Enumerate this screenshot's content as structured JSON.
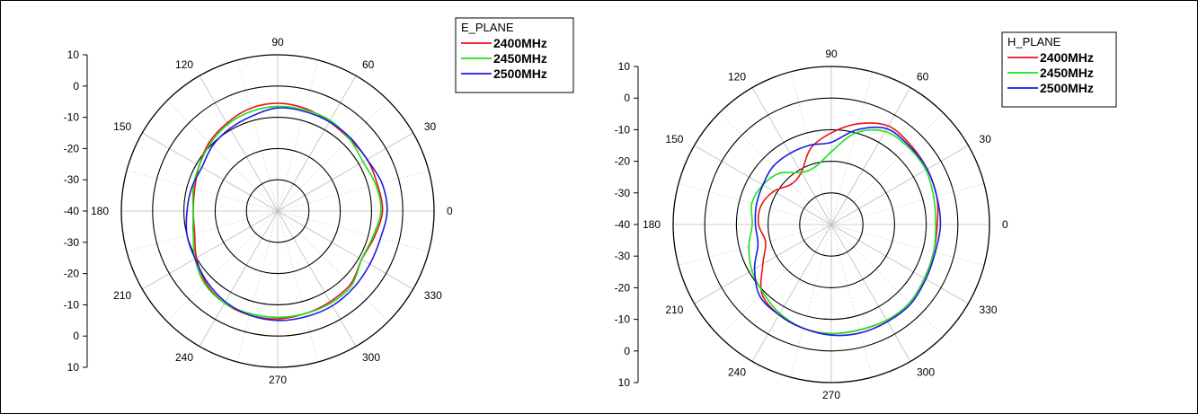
{
  "chart_data": [
    {
      "type": "polar-line",
      "legend_title": "E_PLANE",
      "legend_position": "top-right",
      "angle_labels": [
        "0",
        "30",
        "60",
        "90",
        "120",
        "150",
        "180",
        "210",
        "240",
        "270",
        "300",
        "330"
      ],
      "radial_axis_labels": [
        "10",
        "0",
        "-10",
        "-20",
        "-30",
        "-40",
        "-30",
        "-20",
        "-10",
        "0",
        "10"
      ],
      "radial_range": [
        -40,
        10
      ],
      "angles_deg": [
        0,
        15,
        30,
        45,
        60,
        75,
        90,
        105,
        120,
        135,
        150,
        165,
        180,
        195,
        210,
        225,
        240,
        255,
        270,
        285,
        300,
        315,
        330,
        345
      ],
      "series": [
        {
          "name": "2400MHz",
          "color": "#e8141a",
          "gain_db": [
            -6.5,
            -7,
            -7,
            -7.5,
            -7,
            -6,
            -5.5,
            -6,
            -7.5,
            -9,
            -11,
            -12.5,
            -13,
            -12.5,
            -10,
            -7.5,
            -6,
            -5.5,
            -5.5,
            -6,
            -6.5,
            -7,
            -9,
            -8
          ]
        },
        {
          "name": "2450MHz",
          "color": "#1ce11c",
          "gain_db": [
            -7,
            -7.5,
            -8.5,
            -7.5,
            -6.5,
            -6.5,
            -6.5,
            -7,
            -8,
            -9.5,
            -11,
            -12,
            -13,
            -12,
            -9.5,
            -7,
            -6,
            -6,
            -6,
            -6,
            -6,
            -6.5,
            -9,
            -8.5
          ]
        },
        {
          "name": "2500MHz",
          "color": "#1c1ce0",
          "gain_db": [
            -5,
            -5.5,
            -7,
            -7,
            -7,
            -7,
            -7,
            -8.5,
            -9.5,
            -10.5,
            -12,
            -11.5,
            -11,
            -10,
            -9.5,
            -8,
            -6.5,
            -5.5,
            -5,
            -5,
            -5,
            -5.5,
            -6,
            -6
          ]
        }
      ]
    },
    {
      "type": "polar-line",
      "legend_title": "H_PLANE",
      "legend_position": "top-right",
      "angle_labels": [
        "0",
        "30",
        "60",
        "90",
        "120",
        "150",
        "180",
        "210",
        "240",
        "270",
        "300",
        "330"
      ],
      "radial_axis_labels": [
        "10",
        "0",
        "-10",
        "-20",
        "-30",
        "-40",
        "-30",
        "-20",
        "-10",
        "0",
        "10"
      ],
      "radial_range": [
        -40,
        10
      ],
      "angles_deg": [
        0,
        15,
        30,
        45,
        60,
        75,
        90,
        105,
        120,
        135,
        150,
        165,
        180,
        195,
        210,
        225,
        240,
        255,
        270,
        285,
        300,
        315,
        330,
        345
      ],
      "series": [
        {
          "name": "2400MHz",
          "color": "#e8141a",
          "gain_db": [
            -6.5,
            -5.5,
            -5,
            -4.5,
            -4,
            -7,
            -11,
            -15,
            -21,
            -22,
            -19,
            -17,
            -17,
            -18.5,
            -15,
            -9,
            -7,
            -6,
            -5.5,
            -5.5,
            -5,
            -5,
            -6,
            -6.5
          ]
        },
        {
          "name": "2450MHz",
          "color": "#1ce11c",
          "gain_db": [
            -7,
            -6.5,
            -5.5,
            -5.5,
            -6,
            -10,
            -17,
            -21,
            -21,
            -17,
            -15,
            -14,
            -15,
            -13,
            -11,
            -9.5,
            -7.5,
            -6,
            -5.5,
            -5.5,
            -5,
            -5,
            -6,
            -6.5
          ]
        },
        {
          "name": "2500MHz",
          "color": "#1c1ce0",
          "gain_db": [
            -5.5,
            -5.5,
            -5,
            -5,
            -5,
            -9,
            -14,
            -14,
            -14,
            -14,
            -15,
            -15.5,
            -16,
            -16,
            -12,
            -8,
            -7,
            -6,
            -5,
            -4.5,
            -4.5,
            -4.5,
            -5.5,
            -6
          ]
        }
      ]
    }
  ]
}
